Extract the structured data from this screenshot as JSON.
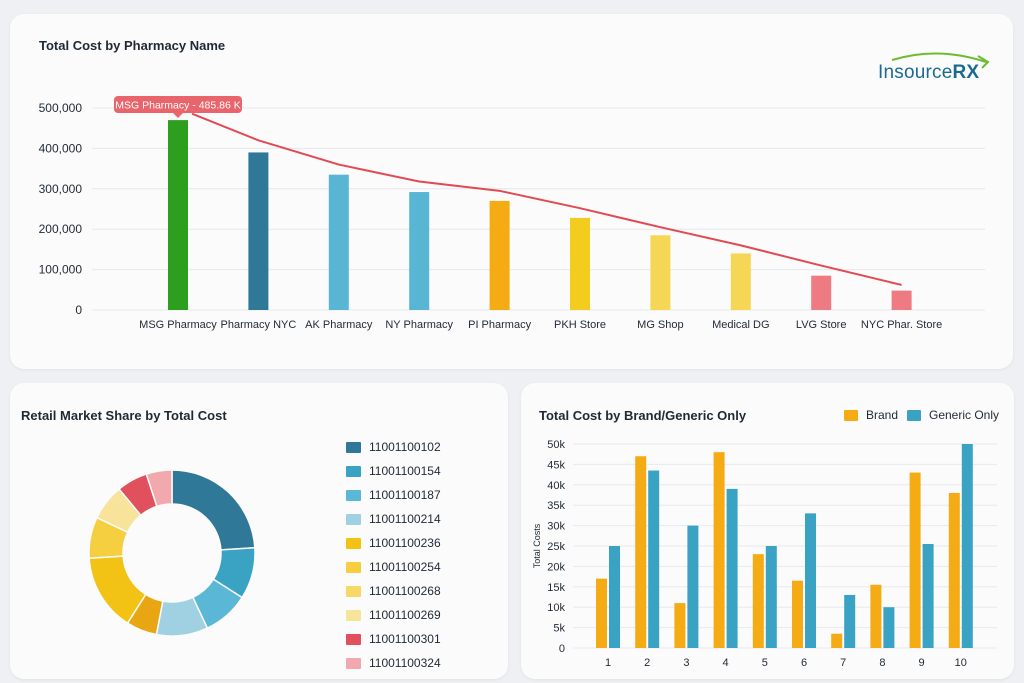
{
  "colors": {
    "green": "#2e9e1f",
    "dark_blue": "#2f7898",
    "teal": "#3aa3c4",
    "light_blue": "#5ab8d6",
    "pale_blue": "#9fd1e3",
    "yellow": "#f2c314",
    "gold": "#f5cf3f",
    "light_gold": "#f7d866",
    "cream": "#f8e39b",
    "red": "#e0505d",
    "pink": "#f2a9ae",
    "orange": "#f4ab14",
    "trend_red": "#e24a52",
    "tooltip_bg": "#e9656c"
  },
  "logo": {
    "text_main": "Insource",
    "text_rx": "RX"
  },
  "chart_data": [
    {
      "id": "pharmacy",
      "type": "bar",
      "title": "Total Cost by Pharmacy Name",
      "categories": [
        "MSG Pharmacy",
        "Pharmacy NYC",
        "AK Pharmacy",
        "NY Pharmacy",
        "PI Pharmacy",
        "PKH Store",
        "MG Shop",
        "Medical DG",
        "LVG Store",
        "NYC Phar. Store"
      ],
      "values": [
        470000,
        390000,
        335000,
        292000,
        270000,
        228000,
        185000,
        140000,
        85000,
        48000
      ],
      "bar_colors": [
        "#2e9e1f",
        "#2f7898",
        "#58b6d4",
        "#58b6d4",
        "#f4ab14",
        "#f2cc1e",
        "#f6d755",
        "#f6d755",
        "#ef7b82",
        "#ef7b82"
      ],
      "trend_line": [
        485860,
        420000,
        360000,
        318000,
        295000,
        252000,
        205000,
        160000,
        110000,
        62000
      ],
      "tooltip": "MSG Pharmacy - 485.86 K",
      "yticks": [
        0,
        100000,
        200000,
        300000,
        400000,
        500000
      ],
      "ytick_labels": [
        "0",
        "100,000",
        "200,000",
        "300,000",
        "400,000",
        "500,000"
      ],
      "ylim": [
        0,
        500000
      ],
      "grid": true
    },
    {
      "id": "market",
      "type": "pie",
      "title": "Retail Market Share by Total Cost",
      "labels": [
        "11001100102",
        "11001100154",
        "11001100187",
        "11001100214",
        "11001100236",
        "11001100254",
        "11001100268",
        "11001100269",
        "11001100301",
        "11001100324"
      ],
      "legend_colors": [
        "#2f7898",
        "#3aa3c4",
        "#5ab8d6",
        "#9fd1e3",
        "#f2c314",
        "#f5cf3f",
        "#f7d866",
        "#f8e39b",
        "#e0505d",
        "#f2a9ae"
      ],
      "slices": [
        {
          "value": 24,
          "color": "#2f7898"
        },
        {
          "value": 10,
          "color": "#3aa3c4"
        },
        {
          "value": 9,
          "color": "#5ab8d6"
        },
        {
          "value": 10,
          "color": "#9fd1e3"
        },
        {
          "value": 6,
          "color": "#e8a712"
        },
        {
          "value": 15,
          "color": "#f2c314"
        },
        {
          "value": 8,
          "color": "#f5cf3f"
        },
        {
          "value": 7,
          "color": "#f8e39b"
        },
        {
          "value": 6,
          "color": "#e0505d"
        },
        {
          "value": 5,
          "color": "#f2a9ae"
        }
      ]
    },
    {
      "id": "brand",
      "type": "bar",
      "title": "Total Cost by Brand/Generic Only",
      "ylabel": "Total Costs",
      "categories": [
        "1",
        "2",
        "3",
        "4",
        "5",
        "6",
        "7",
        "8",
        "9",
        "10"
      ],
      "series": [
        {
          "name": "Brand",
          "color": "#f4ab14",
          "values": [
            17000,
            47000,
            11000,
            48000,
            23000,
            16500,
            3500,
            15500,
            43000,
            38000
          ]
        },
        {
          "name": "Generic Only",
          "color": "#3aa3c4",
          "values": [
            25000,
            43500,
            30000,
            39000,
            25000,
            33000,
            13000,
            10000,
            25500,
            50000
          ]
        }
      ],
      "yticks": [
        0,
        5000,
        10000,
        15000,
        20000,
        25000,
        30000,
        35000,
        40000,
        45000,
        50000
      ],
      "ytick_labels": [
        "0",
        "5k",
        "10k",
        "15k",
        "20k",
        "25k",
        "30k",
        "35k",
        "40k",
        "45k",
        "50k"
      ],
      "ylim": [
        0,
        50000
      ],
      "legend_position": "top-right",
      "grid": true
    }
  ]
}
